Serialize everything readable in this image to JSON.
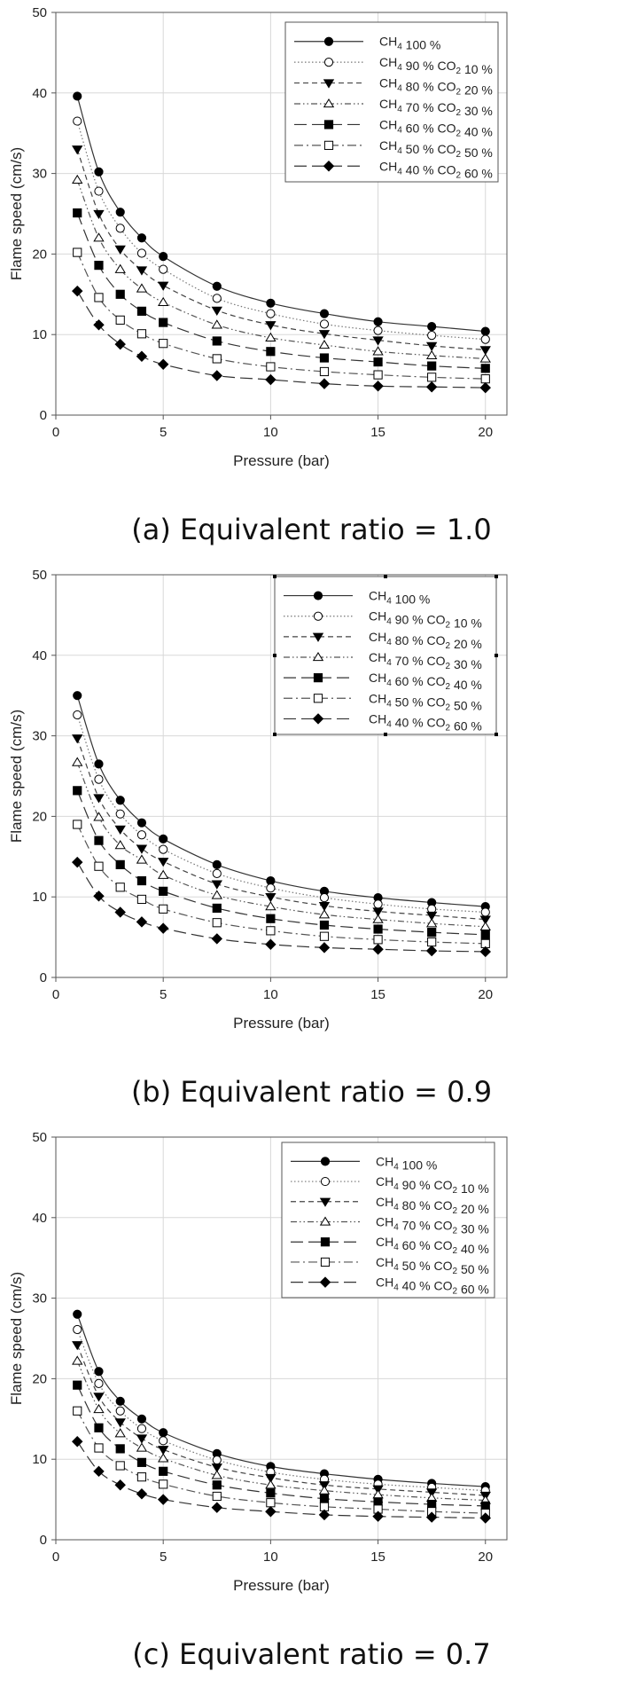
{
  "chart_data": [
    {
      "type": "line",
      "caption": "(a) Equivalent ratio = 1.0",
      "xlabel": "Pressure (bar)",
      "ylabel": "Flame speed (cm/s)",
      "xlim": [
        0,
        21
      ],
      "ylim": [
        0,
        50
      ],
      "xticks": [
        0,
        5,
        10,
        15,
        20
      ],
      "yticks": [
        0,
        10,
        20,
        30,
        40,
        50
      ],
      "grid": true,
      "legend_position": "top-right",
      "x": [
        1,
        2,
        3,
        4,
        5,
        7.5,
        10,
        12.5,
        15,
        17.5,
        20
      ],
      "series": [
        {
          "name": "CH4 100 %",
          "marker": "circle-filled",
          "dash": "solid",
          "values": [
            39.6,
            30.2,
            25.2,
            22.0,
            19.7,
            16.0,
            13.9,
            12.6,
            11.6,
            11.0,
            10.4
          ]
        },
        {
          "name": "CH4 90 % CO2 10 %",
          "marker": "circle-open",
          "dash": "dot",
          "values": [
            36.5,
            27.8,
            23.2,
            20.1,
            18.1,
            14.5,
            12.6,
            11.3,
            10.5,
            9.9,
            9.4
          ]
        },
        {
          "name": "CH4 80 % CO2 20 %",
          "marker": "triangle-down-filled",
          "dash": "shortdash",
          "values": [
            33.0,
            25.0,
            20.6,
            18.0,
            16.1,
            13.0,
            11.2,
            10.1,
            9.3,
            8.6,
            8.1
          ]
        },
        {
          "name": "CH4 70 % CO2 30 %",
          "marker": "triangle-up-open",
          "dash": "dashdotdot",
          "values": [
            29.2,
            22.0,
            18.1,
            15.7,
            14.0,
            11.2,
            9.6,
            8.7,
            7.9,
            7.4,
            7.0
          ]
        },
        {
          "name": "CH4 60 % CO2 40 %",
          "marker": "square-filled",
          "dash": "longdash",
          "values": [
            25.1,
            18.6,
            15.0,
            12.9,
            11.5,
            9.2,
            7.9,
            7.1,
            6.6,
            6.1,
            5.8
          ]
        },
        {
          "name": "CH4 50 % CO2 50 %",
          "marker": "square-open",
          "dash": "dashdot",
          "values": [
            20.2,
            14.6,
            11.8,
            10.1,
            8.9,
            7.0,
            6.0,
            5.4,
            5.0,
            4.7,
            4.5
          ]
        },
        {
          "name": "CH4 40 % CO2 60 %",
          "marker": "diamond-filled",
          "dash": "longdash",
          "values": [
            15.4,
            11.2,
            8.8,
            7.3,
            6.3,
            4.9,
            4.4,
            3.9,
            3.6,
            3.5,
            3.4
          ]
        }
      ]
    },
    {
      "type": "line",
      "caption": "(b) Equivalent ratio = 0.9",
      "xlabel": "Pressure (bar)",
      "ylabel": "Flame speed (cm/s)",
      "xlim": [
        0,
        21
      ],
      "ylim": [
        0,
        50
      ],
      "xticks": [
        0,
        5,
        10,
        15,
        20
      ],
      "yticks": [
        0,
        10,
        20,
        30,
        40,
        50
      ],
      "grid": true,
      "legend_position": "top-right",
      "x": [
        1,
        2,
        3,
        4,
        5,
        7.5,
        10,
        12.5,
        15,
        17.5,
        20
      ],
      "series": [
        {
          "name": "CH4 100 %",
          "marker": "circle-filled",
          "dash": "solid",
          "values": [
            35.0,
            26.5,
            22.0,
            19.2,
            17.2,
            14.0,
            12.0,
            10.7,
            9.9,
            9.3,
            8.8
          ]
        },
        {
          "name": "CH4 90 % CO2 10 %",
          "marker": "circle-open",
          "dash": "dot",
          "values": [
            32.6,
            24.6,
            20.3,
            17.7,
            15.9,
            12.9,
            11.1,
            9.9,
            9.1,
            8.5,
            8.1
          ]
        },
        {
          "name": "CH4 80 % CO2 20 %",
          "marker": "triangle-down-filled",
          "dash": "shortdash",
          "values": [
            29.7,
            22.3,
            18.4,
            16.0,
            14.4,
            11.6,
            10.0,
            8.9,
            8.2,
            7.7,
            7.2
          ]
        },
        {
          "name": "CH4 70 % CO2 30 %",
          "marker": "triangle-up-open",
          "dash": "dashdotdot",
          "values": [
            26.7,
            19.9,
            16.4,
            14.6,
            12.7,
            10.2,
            8.8,
            7.8,
            7.2,
            6.7,
            6.3
          ]
        },
        {
          "name": "CH4 60 % CO2 40 %",
          "marker": "square-filled",
          "dash": "longdash",
          "values": [
            23.2,
            17.0,
            14.0,
            12.0,
            10.7,
            8.6,
            7.3,
            6.5,
            6.0,
            5.6,
            5.3
          ]
        },
        {
          "name": "CH4 50 % CO2 50 %",
          "marker": "square-open",
          "dash": "dashdot",
          "values": [
            19.0,
            13.8,
            11.2,
            9.7,
            8.5,
            6.8,
            5.8,
            5.1,
            4.7,
            4.4,
            4.2
          ]
        },
        {
          "name": "CH4 40 % CO2 60 %",
          "marker": "diamond-filled",
          "dash": "longdash",
          "values": [
            14.3,
            10.1,
            8.1,
            6.9,
            6.1,
            4.8,
            4.1,
            3.7,
            3.5,
            3.3,
            3.2
          ]
        }
      ]
    },
    {
      "type": "line",
      "caption": "(c) Equivalent ratio = 0.7",
      "xlabel": "Pressure (bar)",
      "ylabel": "Flame speed (cm/s)",
      "xlim": [
        0,
        21
      ],
      "ylim": [
        0,
        50
      ],
      "xticks": [
        0,
        5,
        10,
        15,
        20
      ],
      "yticks": [
        0,
        10,
        20,
        30,
        40,
        50
      ],
      "grid": true,
      "legend_position": "top-right",
      "x": [
        1,
        2,
        3,
        4,
        5,
        7.5,
        10,
        12.5,
        15,
        17.5,
        20
      ],
      "series": [
        {
          "name": "CH4 100 %",
          "marker": "circle-filled",
          "dash": "solid",
          "values": [
            28.0,
            20.9,
            17.2,
            15.0,
            13.3,
            10.7,
            9.1,
            8.2,
            7.5,
            7.0,
            6.6
          ]
        },
        {
          "name": "CH4 90 % CO2 10 %",
          "marker": "circle-open",
          "dash": "dot",
          "values": [
            26.1,
            19.4,
            16.0,
            13.8,
            12.3,
            9.9,
            8.4,
            7.5,
            6.9,
            6.5,
            6.1
          ]
        },
        {
          "name": "CH4 80 % CO2 20 %",
          "marker": "triangle-down-filled",
          "dash": "shortdash",
          "values": [
            24.2,
            17.8,
            14.6,
            12.6,
            11.2,
            9.0,
            7.7,
            6.8,
            6.3,
            5.9,
            5.5
          ]
        },
        {
          "name": "CH4 70 % CO2 30 %",
          "marker": "triangle-up-open",
          "dash": "dashdotdot",
          "values": [
            22.2,
            16.2,
            13.2,
            11.4,
            10.1,
            8.0,
            6.8,
            6.1,
            5.6,
            5.2,
            4.9
          ]
        },
        {
          "name": "CH4 60 % CO2 40 %",
          "marker": "square-filled",
          "dash": "longdash",
          "values": [
            19.2,
            13.9,
            11.3,
            9.6,
            8.5,
            6.8,
            5.8,
            5.1,
            4.7,
            4.4,
            4.2
          ]
        },
        {
          "name": "CH4 50 % CO2 50 %",
          "marker": "square-open",
          "dash": "dashdot",
          "values": [
            16.0,
            11.4,
            9.2,
            7.8,
            6.9,
            5.4,
            4.6,
            4.1,
            3.8,
            3.5,
            3.3
          ]
        },
        {
          "name": "CH4 40 % CO2 60 %",
          "marker": "diamond-filled",
          "dash": "longdash",
          "values": [
            12.2,
            8.5,
            6.8,
            5.7,
            5.0,
            4.0,
            3.5,
            3.1,
            2.9,
            2.8,
            2.7
          ]
        }
      ]
    }
  ]
}
